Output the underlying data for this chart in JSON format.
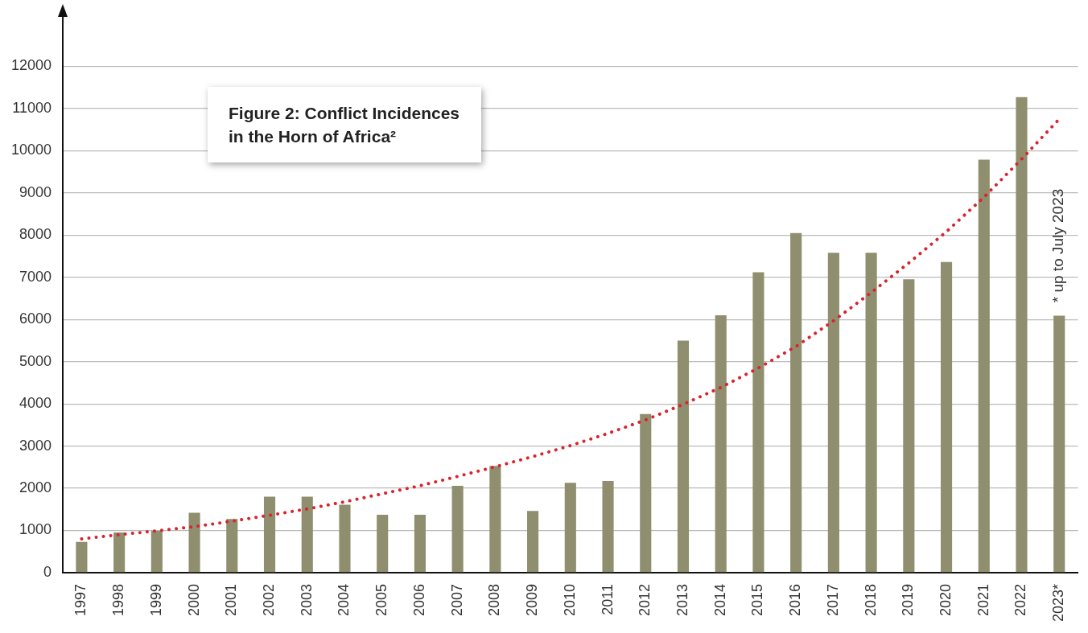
{
  "chart_data": {
    "type": "bar",
    "title": "Figure 2: Conflict Incidences in the Horn of Africa²",
    "categories": [
      "1997",
      "1998",
      "1999",
      "2000",
      "2001",
      "2002",
      "2003",
      "2004",
      "2005",
      "2006",
      "2007",
      "2008",
      "2009",
      "2010",
      "2011",
      "2012",
      "2013",
      "2014",
      "2015",
      "2016",
      "2017",
      "2018",
      "2019",
      "2020",
      "2021",
      "2022",
      "2023*"
    ],
    "series": [
      {
        "color": "#8f8f6f",
        "values": [
          730,
          950,
          990,
          1420,
          1270,
          1800,
          1800,
          1610,
          1370,
          1370,
          2060,
          2530,
          1460,
          2130,
          2170,
          3760,
          5500,
          6100,
          7120,
          8050,
          7580,
          7580,
          6950,
          7360,
          9790,
          11270,
          6090
        ]
      },
      {
        "type": "line",
        "color": "#d9232d",
        "line_style": "dotted",
        "values": [
          800,
          900,
          990,
          1090,
          1220,
          1360,
          1510,
          1680,
          1870,
          2060,
          2280,
          2510,
          2750,
          3010,
          3300,
          3620,
          3990,
          4390,
          4850,
          5360,
          5970,
          6640,
          7340,
          8080,
          8900,
          9800,
          10750
        ]
      }
    ],
    "ylim": [
      0,
      13000
    ],
    "yticks": [
      0,
      1000,
      2000,
      3000,
      4000,
      5000,
      6000,
      7000,
      8000,
      9000,
      10000,
      11000,
      12000
    ],
    "grid": "y",
    "legend": false,
    "marker": "none",
    "annotations": [
      "* up to July 2023"
    ]
  }
}
